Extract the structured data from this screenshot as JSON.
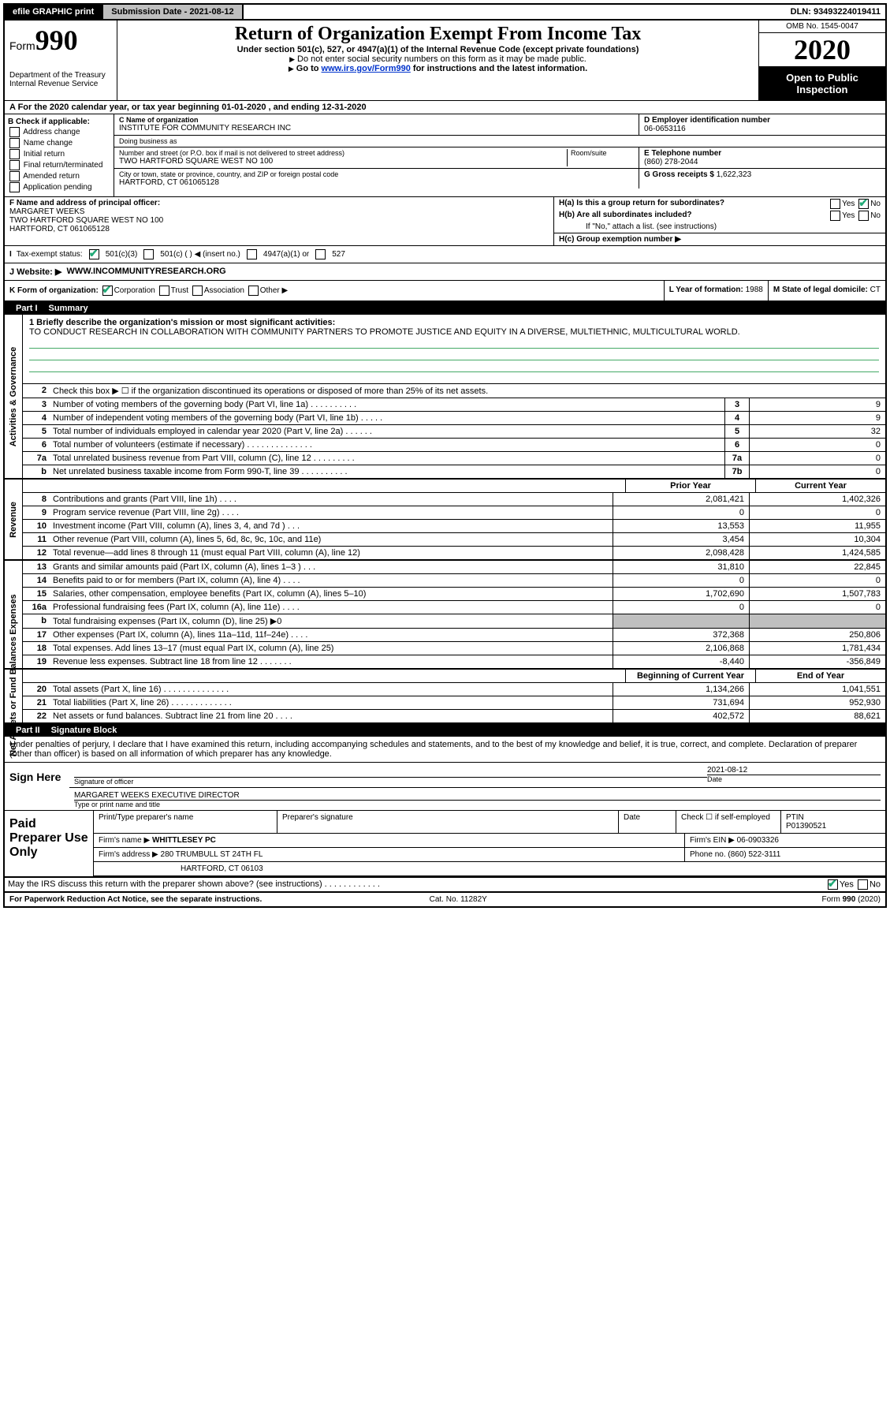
{
  "topbar": {
    "efile": "efile GRAPHIC print",
    "submission_lbl": "Submission Date - 2021-08-12",
    "dln": "DLN: 93493224019411"
  },
  "header": {
    "form_word": "Form",
    "form_num": "990",
    "dept": "Department of the Treasury",
    "irs": "Internal Revenue Service",
    "title": "Return of Organization Exempt From Income Tax",
    "sub1": "Under section 501(c), 527, or 4947(a)(1) of the Internal Revenue Code (except private foundations)",
    "sub2": "Do not enter social security numbers on this form as it may be made public.",
    "sub3a": "Go to ",
    "sub3link": "www.irs.gov/Form990",
    "sub3b": " for instructions and the latest information.",
    "omb": "OMB No. 1545-0047",
    "year": "2020",
    "open": "Open to Public Inspection"
  },
  "rowA": "A For the 2020 calendar year, or tax year beginning 01-01-2020    , and ending 12-31-2020",
  "boxB": {
    "hdr": "B Check if applicable:",
    "addr": "Address change",
    "name": "Name change",
    "init": "Initial return",
    "final": "Final return/terminated",
    "amend": "Amended return",
    "app": "Application pending"
  },
  "C": {
    "name_lbl": "C Name of organization",
    "name": "INSTITUTE FOR COMMUNITY RESEARCH INC",
    "dba_lbl": "Doing business as",
    "dba": "",
    "street_lbl": "Number and street (or P.O. box if mail is not delivered to street address)",
    "room_lbl": "Room/suite",
    "street": "TWO HARTFORD SQUARE WEST NO 100",
    "city_lbl": "City or town, state or province, country, and ZIP or foreign postal code",
    "city": "HARTFORD, CT  061065128"
  },
  "D": {
    "ein_lbl": "D Employer identification number",
    "ein": "06-0653116",
    "tel_lbl": "E Telephone number",
    "tel": "(860) 278-2044",
    "gross_lbl": "G Gross receipts $ ",
    "gross": "1,622,323"
  },
  "F": {
    "lbl": "F Name and address of principal officer:",
    "name": "MARGARET WEEKS",
    "addr1": "TWO HARTFORD SQUARE WEST NO 100",
    "addr2": "HARTFORD, CT  061065128"
  },
  "H": {
    "a": "H(a)  Is this a group return for subordinates?",
    "b": "H(b)  Are all subordinates included?",
    "bnote": "If \"No,\" attach a list. (see instructions)",
    "c": "H(c)  Group exemption number ▶",
    "yes": "Yes",
    "no": "No"
  },
  "I": {
    "lbl": "Tax-exempt status:",
    "o1": "501(c)(3)",
    "o2": "501(c) (   ) ◀ (insert no.)",
    "o3": "4947(a)(1) or",
    "o4": "527"
  },
  "J": {
    "lbl": "J   Website: ▶",
    "val": "WWW.INCOMMUNITYRESEARCH.ORG"
  },
  "K": {
    "lbl": "K Form of organization:",
    "corp": "Corporation",
    "trust": "Trust",
    "assoc": "Association",
    "other": "Other ▶"
  },
  "L": {
    "lbl": "L Year of formation: ",
    "val": "1988"
  },
  "M": {
    "lbl": "M State of legal domicile: ",
    "val": "CT"
  },
  "part1": {
    "num": "Part I",
    "title": "Summary"
  },
  "mission": {
    "lbl": "1  Briefly describe the organization's mission or most significant activities:",
    "text": "TO CONDUCT RESEARCH IN COLLABORATION WITH COMMUNITY PARTNERS TO PROMOTE JUSTICE AND EQUITY IN A DIVERSE, MULTIETHNIC, MULTICULTURAL WORLD."
  },
  "lines_gov": [
    {
      "n": "2",
      "d": "Check this box ▶ ☐  if the organization discontinued its operations or disposed of more than 25% of its net assets."
    },
    {
      "n": "3",
      "d": "Number of voting members of the governing body (Part VI, line 1a)  .   .   .   .   .   .   .   .   .   .",
      "b": "3",
      "v": "9"
    },
    {
      "n": "4",
      "d": "Number of independent voting members of the governing body (Part VI, line 1b)  .   .   .   .   .",
      "b": "4",
      "v": "9"
    },
    {
      "n": "5",
      "d": "Total number of individuals employed in calendar year 2020 (Part V, line 2a)  .   .   .   .   .   .",
      "b": "5",
      "v": "32"
    },
    {
      "n": "6",
      "d": "Total number of volunteers (estimate if necessary)   .   .   .   .   .   .   .   .   .   .   .   .   .   .",
      "b": "6",
      "v": "0"
    },
    {
      "n": "7a",
      "d": "Total unrelated business revenue from Part VIII, column (C), line 12  .   .   .   .   .   .   .   .   .",
      "b": "7a",
      "v": "0"
    },
    {
      "n": "b",
      "d": "Net unrelated business taxable income from Form 990-T, line 39   .   .   .   .   .   .   .   .   .   .",
      "b": "7b",
      "v": "0"
    }
  ],
  "col_hdrs": {
    "prior": "Prior Year",
    "current": "Current Year",
    "boy": "Beginning of Current Year",
    "eoy": "End of Year"
  },
  "revenue": [
    {
      "n": "8",
      "d": "Contributions and grants (Part VIII, line 1h)  .   .   .   .",
      "p": "2,081,421",
      "c": "1,402,326"
    },
    {
      "n": "9",
      "d": "Program service revenue (Part VIII, line 2g)   .   .   .   .",
      "p": "0",
      "c": "0"
    },
    {
      "n": "10",
      "d": "Investment income (Part VIII, column (A), lines 3, 4, and 7d )   .   .   .",
      "p": "13,553",
      "c": "11,955"
    },
    {
      "n": "11",
      "d": "Other revenue (Part VIII, column (A), lines 5, 6d, 8c, 9c, 10c, and 11e)",
      "p": "3,454",
      "c": "10,304"
    },
    {
      "n": "12",
      "d": "Total revenue—add lines 8 through 11 (must equal Part VIII, column (A), line 12)",
      "p": "2,098,428",
      "c": "1,424,585"
    }
  ],
  "expenses": [
    {
      "n": "13",
      "d": "Grants and similar amounts paid (Part IX, column (A), lines 1–3 )  .   .   .",
      "p": "31,810",
      "c": "22,845"
    },
    {
      "n": "14",
      "d": "Benefits paid to or for members (Part IX, column (A), line 4)  .   .   .   .",
      "p": "0",
      "c": "0"
    },
    {
      "n": "15",
      "d": "Salaries, other compensation, employee benefits (Part IX, column (A), lines 5–10)",
      "p": "1,702,690",
      "c": "1,507,783"
    },
    {
      "n": "16a",
      "d": "Professional fundraising fees (Part IX, column (A), line 11e)  .   .   .   .",
      "p": "0",
      "c": "0"
    },
    {
      "n": "b",
      "d": "Total fundraising expenses (Part IX, column (D), line 25) ▶0",
      "p": "",
      "c": "",
      "grey": true
    },
    {
      "n": "17",
      "d": "Other expenses (Part IX, column (A), lines 11a–11d, 11f–24e)  .   .   .   .",
      "p": "372,368",
      "c": "250,806"
    },
    {
      "n": "18",
      "d": "Total expenses. Add lines 13–17 (must equal Part IX, column (A), line 25)",
      "p": "2,106,868",
      "c": "1,781,434"
    },
    {
      "n": "19",
      "d": "Revenue less expenses. Subtract line 18 from line 12  .   .   .   .   .   .   .",
      "p": "-8,440",
      "c": "-356,849"
    }
  ],
  "netassets": [
    {
      "n": "20",
      "d": "Total assets (Part X, line 16)  .   .   .   .   .   .   .   .   .   .   .   .   .   .",
      "p": "1,134,266",
      "c": "1,041,551"
    },
    {
      "n": "21",
      "d": "Total liabilities (Part X, line 26)  .   .   .   .   .   .   .   .   .   .   .   .   .",
      "p": "731,694",
      "c": "952,930"
    },
    {
      "n": "22",
      "d": "Net assets or fund balances. Subtract line 21 from line 20  .   .   .   .",
      "p": "402,572",
      "c": "88,621"
    }
  ],
  "side": {
    "gov": "Activities & Governance",
    "rev": "Revenue",
    "exp": "Expenses",
    "net": "Net Assets or Fund Balances"
  },
  "part2": {
    "num": "Part II",
    "title": "Signature Block"
  },
  "sig": {
    "penalty": "Under penalties of perjury, I declare that I have examined this return, including accompanying schedules and statements, and to the best of my knowledge and belief, it is true, correct, and complete. Declaration of preparer (other than officer) is based on all information of which preparer has any knowledge.",
    "sign_here": "Sign Here",
    "sig_officer": "Signature of officer",
    "date_lbl": "Date",
    "date": "2021-08-12",
    "name_title": "MARGARET WEEKS  EXECUTIVE DIRECTOR",
    "type_lbl": "Type or print name and title"
  },
  "prep": {
    "hdr": "Paid Preparer Use Only",
    "print_lbl": "Print/Type preparer's name",
    "sig_lbl": "Preparer's signature",
    "date_lbl": "Date",
    "check_lbl": "Check ☐ if self-employed",
    "ptin_lbl": "PTIN",
    "ptin": "P01390521",
    "firm_name_lbl": "Firm's name   ▶",
    "firm_name": "WHITTLESEY PC",
    "firm_ein_lbl": "Firm's EIN ▶ ",
    "firm_ein": "06-0903326",
    "firm_addr_lbl": "Firm's address ▶",
    "firm_addr1": "280 TRUMBULL ST 24TH FL",
    "firm_addr2": "HARTFORD, CT  06103",
    "phone_lbl": "Phone no. ",
    "phone": "(860) 522-3111",
    "discuss": "May the IRS discuss this return with the preparer shown above? (see instructions)   .   .   .   .   .   .   .   .   .   .   .   .",
    "yes": "Yes",
    "no": "No"
  },
  "footer": {
    "pra": "For Paperwork Reduction Act Notice, see the separate instructions.",
    "cat": "Cat. No. 11282Y",
    "form": "Form 990 (2020)"
  }
}
